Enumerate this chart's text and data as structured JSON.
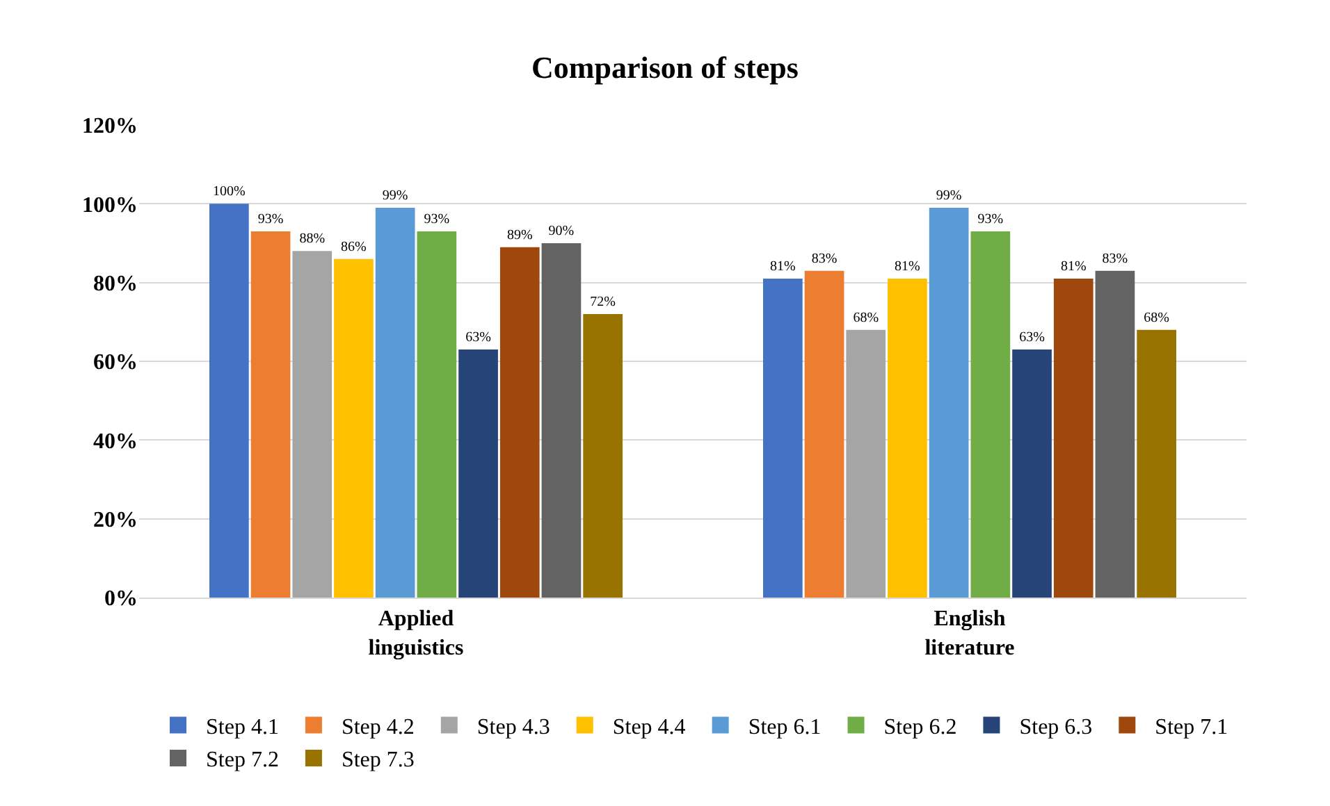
{
  "chart_data": {
    "type": "bar",
    "title": "Comparison of steps",
    "categories": [
      "Applied\nlinguistics",
      "English\nliterature"
    ],
    "series": [
      {
        "name": "Step 4.1",
        "color": "#4472c4",
        "values": [
          100,
          81
        ],
        "value_labels": [
          "100%",
          "81%"
        ]
      },
      {
        "name": "Step 4.2",
        "color": "#ed7d31",
        "values": [
          93,
          83
        ],
        "value_labels": [
          "93%",
          "83%"
        ]
      },
      {
        "name": "Step 4.3",
        "color": "#a5a5a5",
        "values": [
          88,
          68
        ],
        "value_labels": [
          "88%",
          "68%"
        ]
      },
      {
        "name": "Step 4.4",
        "color": "#ffc000",
        "values": [
          86,
          81
        ],
        "value_labels": [
          "86%",
          "81%"
        ]
      },
      {
        "name": "Step 6.1",
        "color": "#5b9bd5",
        "values": [
          99,
          99
        ],
        "value_labels": [
          "99%",
          "99%"
        ]
      },
      {
        "name": "Step 6.2",
        "color": "#70ad47",
        "values": [
          93,
          93
        ],
        "value_labels": [
          "93%",
          "93%"
        ]
      },
      {
        "name": "Step 6.3",
        "color": "#264478",
        "values": [
          63,
          63
        ],
        "value_labels": [
          "63%",
          "63%"
        ]
      },
      {
        "name": "Step 7.1",
        "color": "#9e480e",
        "values": [
          89,
          81
        ],
        "value_labels": [
          "89%",
          "81%"
        ]
      },
      {
        "name": "Step 7.2",
        "color": "#636363",
        "values": [
          90,
          83
        ],
        "value_labels": [
          "90%",
          "83%"
        ]
      },
      {
        "name": "Step 7.3",
        "color": "#997300",
        "values": [
          72,
          68
        ],
        "value_labels": [
          "72%",
          "68%"
        ]
      }
    ],
    "ylim": [
      0,
      120
    ],
    "yticks": [
      {
        "value": 0,
        "label": "0%"
      },
      {
        "value": 20,
        "label": "20%"
      },
      {
        "value": 40,
        "label": "40%"
      },
      {
        "value": 60,
        "label": "60%"
      },
      {
        "value": 80,
        "label": "80%"
      },
      {
        "value": 100,
        "label": "100%"
      },
      {
        "value": 120,
        "label": "120%"
      }
    ],
    "grid": "y",
    "legend": "bottom"
  }
}
